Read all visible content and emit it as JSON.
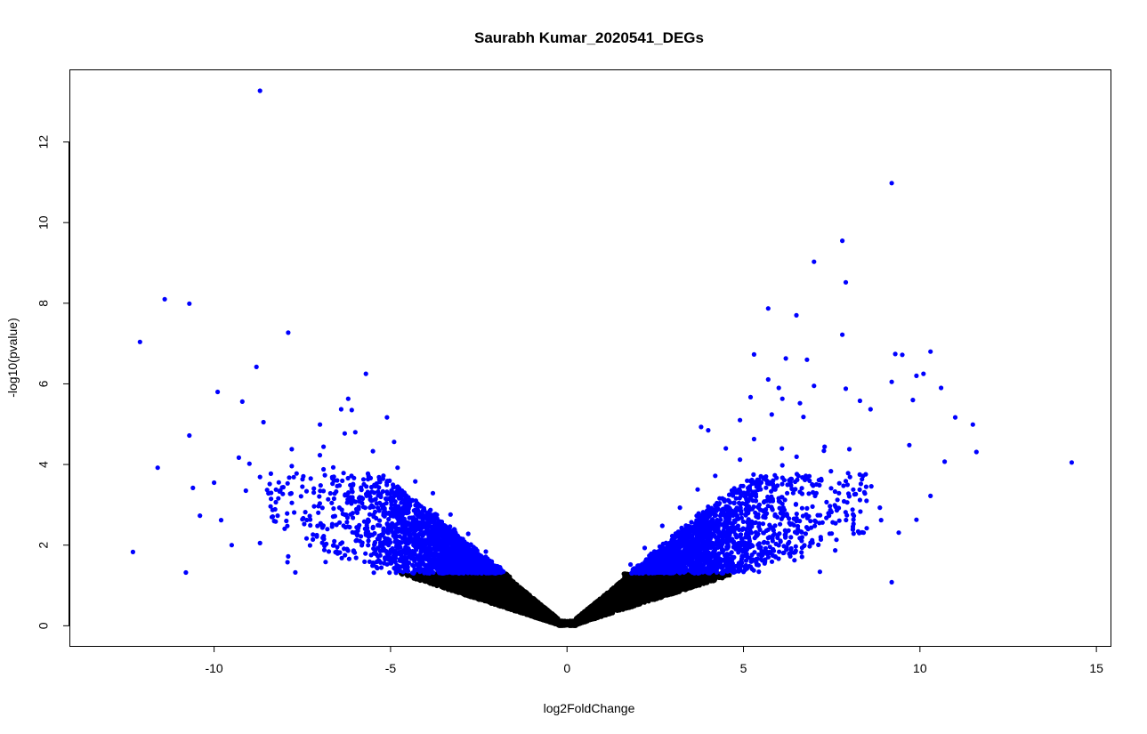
{
  "chart_data": {
    "type": "scatter",
    "title": "Saurabh Kumar_2020541_DEGs",
    "xlabel": "log2FoldChange",
    "ylabel": "-log10(pvalue)",
    "xlim": [
      -14.1,
      15.4
    ],
    "ylim": [
      -0.5,
      13.8
    ],
    "x_ticks": [
      -10,
      -5,
      0,
      5,
      10,
      15
    ],
    "x_tick_labels": [
      "-10",
      "-5",
      "0",
      "5",
      "10",
      "15"
    ],
    "y_ticks": [
      0,
      2,
      4,
      6,
      8,
      10,
      12
    ],
    "y_tick_labels": [
      "0",
      "2",
      "4",
      "6",
      "8",
      "10",
      "12"
    ],
    "grid": false,
    "legend": "none",
    "significance_threshold_neglog10p": 1.3,
    "colors": {
      "significant": "#0000ff",
      "not_significant": "#000000"
    },
    "series": [
      {
        "color": "#0000ff",
        "points": [
          [
            -8.7,
            13.27
          ],
          [
            9.2,
            10.98
          ],
          [
            7.8,
            9.55
          ],
          [
            7.0,
            9.03
          ],
          [
            7.9,
            8.52
          ],
          [
            -11.4,
            8.1
          ],
          [
            -10.7,
            7.99
          ],
          [
            5.7,
            7.87
          ],
          [
            6.5,
            7.7
          ],
          [
            -7.9,
            7.27
          ],
          [
            7.8,
            7.22
          ],
          [
            -12.1,
            7.04
          ],
          [
            10.3,
            6.8
          ],
          [
            9.3,
            6.74
          ],
          [
            9.5,
            6.72
          ],
          [
            5.3,
            6.73
          ],
          [
            6.2,
            6.63
          ],
          [
            6.8,
            6.6
          ],
          [
            -8.8,
            6.42
          ],
          [
            9.9,
            6.2
          ],
          [
            10.1,
            6.25
          ],
          [
            -5.7,
            6.25
          ],
          [
            5.7,
            6.11
          ],
          [
            6.0,
            5.9
          ],
          [
            7.0,
            5.95
          ],
          [
            -9.9,
            5.8
          ],
          [
            10.6,
            5.9
          ],
          [
            7.9,
            5.88
          ],
          [
            5.2,
            5.67
          ],
          [
            9.2,
            6.05
          ],
          [
            8.3,
            5.58
          ],
          [
            9.8,
            5.6
          ],
          [
            -6.2,
            5.63
          ],
          [
            6.6,
            5.52
          ],
          [
            -6.4,
            5.37
          ],
          [
            -9.2,
            5.56
          ],
          [
            6.1,
            5.63
          ],
          [
            -6.1,
            5.35
          ],
          [
            4.9,
            5.1
          ],
          [
            11.0,
            5.17
          ],
          [
            11.5,
            4.99
          ],
          [
            -5.1,
            5.17
          ],
          [
            8.6,
            5.37
          ],
          [
            -8.6,
            5.05
          ],
          [
            -7.0,
            4.99
          ],
          [
            5.8,
            5.24
          ],
          [
            9.7,
            4.48
          ],
          [
            -6.0,
            4.8
          ],
          [
            -6.3,
            4.77
          ],
          [
            6.7,
            5.18
          ],
          [
            3.8,
            4.93
          ],
          [
            4.0,
            4.85
          ],
          [
            -10.7,
            4.72
          ],
          [
            5.3,
            4.63
          ],
          [
            11.6,
            4.31
          ],
          [
            -4.9,
            4.56
          ],
          [
            8.0,
            4.38
          ],
          [
            -7.8,
            4.38
          ],
          [
            -6.9,
            4.44
          ],
          [
            7.3,
            4.44
          ],
          [
            -5.5,
            4.33
          ],
          [
            14.3,
            4.05
          ],
          [
            10.7,
            4.07
          ],
          [
            -9.3,
            4.17
          ],
          [
            -9.0,
            4.02
          ],
          [
            4.5,
            4.4
          ],
          [
            -6.9,
            3.88
          ],
          [
            -8.7,
            3.69
          ],
          [
            -10.6,
            3.42
          ],
          [
            -11.6,
            3.92
          ],
          [
            -10.0,
            3.55
          ],
          [
            -12.3,
            1.83
          ],
          [
            -10.8,
            1.32
          ],
          [
            -10.4,
            2.73
          ],
          [
            -9.8,
            2.62
          ],
          [
            -9.5,
            2.0
          ],
          [
            -8.7,
            2.05
          ],
          [
            -8.2,
            2.73
          ],
          [
            -7.8,
            3.96
          ],
          [
            -7.5,
            3.45
          ],
          [
            -6.6,
            3.6
          ],
          [
            -6.2,
            3.1
          ],
          [
            -5.9,
            2.95
          ],
          [
            -5.4,
            3.48
          ],
          [
            -4.8,
            3.92
          ],
          [
            -4.3,
            3.58
          ],
          [
            -3.8,
            3.29
          ],
          [
            -3.3,
            2.76
          ],
          [
            -2.8,
            2.28
          ],
          [
            -2.3,
            1.84
          ],
          [
            -1.9,
            1.45
          ],
          [
            1.8,
            1.52
          ],
          [
            2.2,
            1.93
          ],
          [
            2.7,
            2.48
          ],
          [
            3.2,
            2.93
          ],
          [
            3.7,
            3.38
          ],
          [
            4.2,
            3.72
          ],
          [
            4.9,
            4.12
          ],
          [
            5.6,
            3.66
          ],
          [
            6.1,
            3.98
          ],
          [
            6.6,
            3.32
          ],
          [
            7.2,
            3.64
          ],
          [
            7.7,
            2.92
          ],
          [
            8.3,
            3.12
          ],
          [
            8.9,
            2.62
          ],
          [
            9.4,
            2.31
          ],
          [
            9.9,
            2.63
          ],
          [
            10.3,
            3.22
          ],
          [
            9.2,
            1.08
          ],
          [
            7.6,
            1.87
          ],
          [
            6.9,
            2.06
          ],
          [
            6.3,
            2.55
          ],
          [
            5.8,
            2.18
          ],
          [
            5.4,
            1.66
          ],
          [
            4.7,
            2.83
          ],
          [
            4.3,
            2.29
          ],
          [
            3.9,
            1.86
          ],
          [
            3.4,
            1.55
          ],
          [
            3.0,
            2.05
          ],
          [
            2.5,
            1.71
          ],
          [
            -2.6,
            1.61
          ],
          [
            -3.0,
            1.93
          ],
          [
            -3.5,
            2.21
          ],
          [
            -4.0,
            2.53
          ],
          [
            -4.6,
            2.84
          ],
          [
            -5.2,
            2.41
          ],
          [
            -5.8,
            2.06
          ],
          [
            -6.5,
            1.79
          ],
          [
            -7.2,
            2.26
          ],
          [
            -7.9,
            1.72
          ],
          [
            -8.4,
            2.96
          ],
          [
            -9.1,
            3.35
          ],
          [
            -3.2,
            1.4
          ],
          [
            -2.1,
            1.33
          ],
          [
            2.0,
            1.35
          ],
          [
            3.6,
            1.42
          ],
          [
            -4.2,
            1.47
          ],
          [
            -5.0,
            1.62
          ],
          [
            4.5,
            1.5
          ],
          [
            5.1,
            1.42
          ]
        ]
      }
    ],
    "generated_background": {
      "description": "dense symmetric V of points: non-significant (black) below threshold, significant (blue) above"
    }
  }
}
